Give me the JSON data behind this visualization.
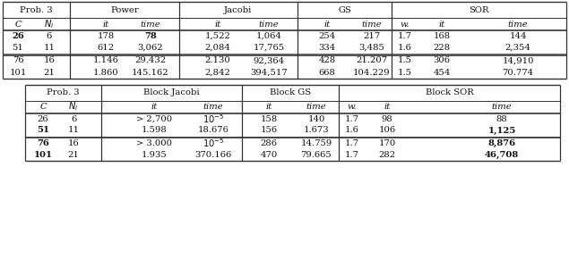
{
  "table1": {
    "col_headers": [
      "Prob. 3",
      "Power",
      "Jacobi",
      "GS",
      "SOR"
    ],
    "sub_headers": [
      "C",
      "N_i",
      "it",
      "time",
      "it",
      "time",
      "it",
      "time",
      "w.",
      "it",
      "time"
    ],
    "rows": [
      [
        "26",
        "6",
        "178",
        "78",
        "1,522",
        "1,064",
        "254",
        "217",
        "1.7",
        "168",
        "144"
      ],
      [
        "51",
        "11",
        "612",
        "3,062",
        "2,084",
        "17,765",
        "334",
        "3,485",
        "1.6",
        "228",
        "2,354"
      ],
      [
        "76",
        "16",
        "1.146",
        "29.432",
        "2.130",
        "92,364",
        "428",
        "21.207",
        "1.5",
        "306",
        "14,910"
      ],
      [
        "101",
        "21",
        "1.860",
        "145.162",
        "2,842",
        "394,517",
        "668",
        "104.229",
        "1.5",
        "454",
        "70.774"
      ]
    ],
    "bold_cells": [
      [
        0,
        3
      ],
      [],
      [],
      []
    ]
  },
  "table2": {
    "col_headers": [
      "Prob. 3",
      "Block Jacobi",
      "Block GS",
      "Block SOR"
    ],
    "sub_headers": [
      "C",
      "N_i",
      "it",
      "time",
      "it",
      "time",
      "w.",
      "it",
      "time"
    ],
    "rows": [
      [
        "26",
        "6",
        "> 2,700",
        "10^{-5}",
        "158",
        "140",
        "1.7",
        "98",
        "88"
      ],
      [
        "51",
        "11",
        "1.598",
        "18.676",
        "156",
        "1.673",
        "1.6",
        "106",
        "1,125"
      ],
      [
        "76",
        "16",
        "> 3.000",
        "10^{-5}",
        "286",
        "14.759",
        "1.7",
        "170",
        "8,876"
      ],
      [
        "101",
        "21",
        "1.935",
        "370.166",
        "470",
        "79.665",
        "1.7",
        "282",
        "46,708"
      ]
    ],
    "bold_cells": [
      [],
      [
        0,
        8
      ],
      [
        0,
        8
      ],
      [
        0,
        8
      ]
    ]
  },
  "bg_color": "#ffffff",
  "text_color": "#111111",
  "line_color": "#333333",
  "font_size": 7.2
}
